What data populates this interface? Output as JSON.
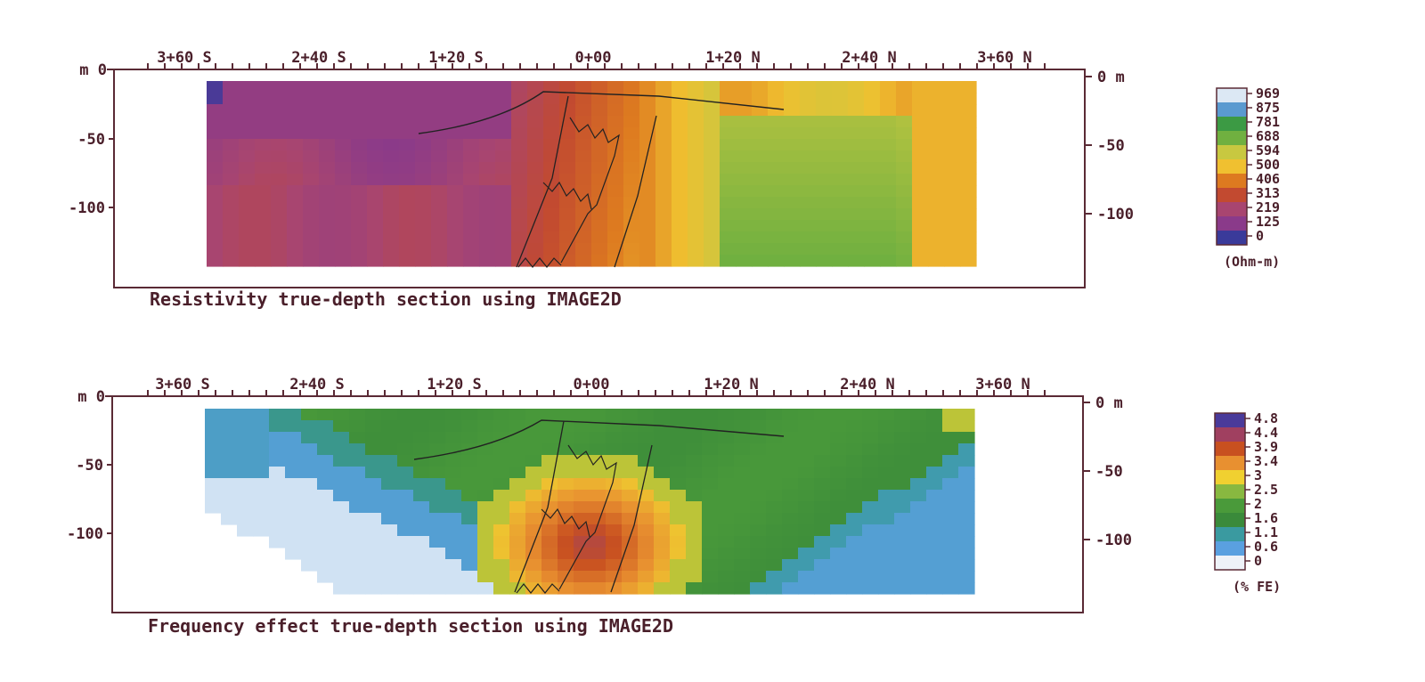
{
  "sections": [
    {
      "caption": "Resistivity true-depth section using IMAGE2D",
      "x_ticks": [
        "3+60 S",
        "2+40 S",
        "1+20 S",
        "0+00",
        "1+20 N",
        "2+40 N",
        "3+60 N"
      ],
      "y_ticks_left": [
        "m 0",
        "-50",
        "-100"
      ],
      "y_ticks_right": [
        "0 m",
        "-50",
        "-100"
      ],
      "legend": {
        "unit": "(Ohm-m)",
        "labels": [
          "969",
          "875",
          "781",
          "688",
          "594",
          "500",
          "406",
          "313",
          "219",
          "125",
          "0"
        ]
      }
    },
    {
      "caption": "Frequency effect true-depth section using IMAGE2D",
      "x_ticks": [
        "3+60 S",
        "2+40 S",
        "1+20 S",
        "0+00",
        "1+20 N",
        "2+40 N",
        "3+60 N"
      ],
      "y_ticks_left": [
        "m 0",
        "-50",
        "-100"
      ],
      "y_ticks_right": [
        "0 m",
        "-50",
        "-100"
      ],
      "legend": {
        "unit": "(% FE)",
        "labels": [
          "4.8",
          "4.4",
          "3.9",
          "3.4",
          "3",
          "2.5",
          "2",
          "1.6",
          "1.1",
          "0.6",
          "0"
        ]
      }
    }
  ],
  "chart_data": [
    {
      "type": "heatmap",
      "title": "Resistivity true-depth section using IMAGE2D",
      "unit": "Ohm-m",
      "x_tick_labels": [
        "3+60 S",
        "2+40 S",
        "1+20 S",
        "0+00",
        "1+20 N",
        "2+40 N",
        "3+60 N"
      ],
      "y_tick_labels": [
        "0",
        "-50",
        "-100"
      ],
      "colorbar": [
        0,
        125,
        219,
        313,
        406,
        500,
        594,
        688,
        781,
        875,
        969
      ],
      "colorbar_colors": [
        "#3a3a9a",
        "#8a3a8a",
        "#a84570",
        "#c24a30",
        "#dd7a20",
        "#f0c030",
        "#c8c840",
        "#70b040",
        "#3c9a44",
        "#5a9ad0",
        "#dce8f4"
      ],
      "zones_south_to_north": [
        "low (about 125-219)",
        "low (about 219-313)",
        "medium (about 313-406)",
        "high (about 500-688)",
        "medium-high (about 406-500)"
      ]
    },
    {
      "type": "heatmap",
      "title": "Frequency effect true-depth section using IMAGE2D",
      "unit": "% FE",
      "x_tick_labels": [
        "3+60 S",
        "2+40 S",
        "1+20 S",
        "0+00",
        "1+20 N",
        "2+40 N",
        "3+60 N"
      ],
      "y_tick_labels": [
        "0",
        "-50",
        "-100"
      ],
      "colorbar": [
        0,
        0.6,
        1.1,
        1.6,
        2,
        2.5,
        3,
        3.4,
        3.9,
        4.4,
        4.8
      ],
      "colorbar_colors": [
        "#eef2f8",
        "#5aa0e0",
        "#3a9aa0",
        "#3a8a3a",
        "#4a9a3a",
        "#88b840",
        "#f0d030",
        "#e89030",
        "#c85020",
        "#a04060",
        "#4a3a9a"
      ],
      "zones_south_to_north": [
        "low (about 0-1.1)",
        "moderate (about 1.6-2)",
        "high (about 3-3.9)",
        "moderate (about 1.6-2)",
        "low (about 0.6-1.1)"
      ]
    }
  ]
}
